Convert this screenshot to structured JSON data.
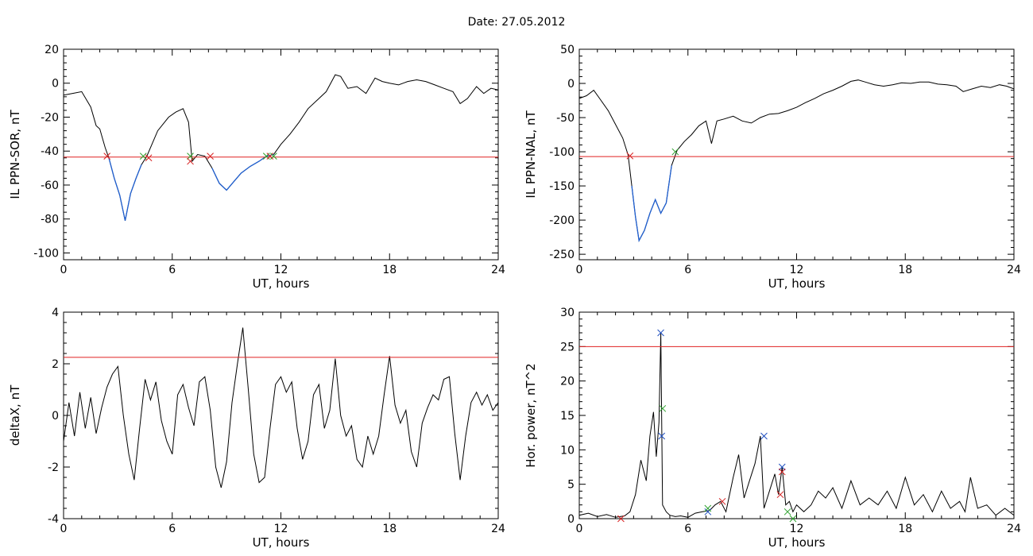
{
  "figure_title": "Date:  27.05.2012",
  "colors": {
    "line": "#000000",
    "threshold": "#e02020",
    "highlight": "#1f5fd0",
    "marker_green": "#2ca02c",
    "marker_red": "#d62020",
    "marker_blue": "#2050c0"
  },
  "chart_data": [
    {
      "type": "line",
      "id": "ppn-sor",
      "xlabel": "UT, hours",
      "ylabel": "IL PPN-SOR, nT",
      "xlim": [
        0,
        24
      ],
      "ylim": [
        -104,
        20
      ],
      "xticks": [
        0,
        6,
        12,
        18,
        24
      ],
      "yticks": [
        20,
        0,
        -20,
        -40,
        -60,
        -80,
        -100
      ],
      "threshold": -43.5,
      "highlight_ranges": [
        [
          2.5,
          4.5
        ],
        [
          8.2,
          11.6
        ]
      ],
      "series": [
        {
          "x": [
            0.0,
            0.5,
            1.0,
            1.5,
            1.8,
            2.0,
            2.3,
            2.5,
            2.8,
            3.1,
            3.4,
            3.7,
            4.0,
            4.3,
            4.6,
            5.2,
            5.8,
            6.2,
            6.6,
            6.9,
            7.1,
            7.4,
            7.8,
            8.2,
            8.6,
            9.0,
            9.4,
            9.8,
            10.3,
            10.8,
            11.2,
            11.6,
            12.0,
            12.5,
            13.0,
            13.5,
            14.0,
            14.5,
            15.0,
            15.3,
            15.7,
            16.2,
            16.7,
            17.2,
            17.6,
            18.0,
            18.5,
            19.0,
            19.5,
            20.0,
            20.5,
            21.0,
            21.5,
            21.9,
            22.3,
            22.8,
            23.2,
            23.6,
            24.0
          ],
          "y": [
            -7,
            -6,
            -5,
            -14,
            -25,
            -27,
            -38,
            -44,
            -56,
            -66,
            -81,
            -65,
            -56,
            -48,
            -43,
            -28,
            -20,
            -17,
            -15,
            -23,
            -46,
            -42,
            -43,
            -50,
            -59,
            -63,
            -58,
            -53,
            -49,
            -46,
            -43,
            -42,
            -36,
            -30,
            -23,
            -15,
            -10,
            -5,
            5,
            4,
            -3,
            -2,
            -6,
            3,
            1,
            0,
            -1,
            1,
            2,
            1,
            -1,
            -3,
            -5,
            -12,
            -9,
            -2,
            -6,
            -3,
            -4
          ]
        }
      ],
      "markers": [
        {
          "x": 2.4,
          "y": -43,
          "color": "red"
        },
        {
          "x": 4.4,
          "y": -43,
          "color": "green"
        },
        {
          "x": 4.7,
          "y": -44,
          "color": "red"
        },
        {
          "x": 7.0,
          "y": -43,
          "color": "green"
        },
        {
          "x": 7.0,
          "y": -46,
          "color": "red"
        },
        {
          "x": 8.1,
          "y": -43,
          "color": "red"
        },
        {
          "x": 11.2,
          "y": -43,
          "color": "green"
        },
        {
          "x": 11.4,
          "y": -43,
          "color": "red"
        },
        {
          "x": 11.6,
          "y": -43,
          "color": "green"
        }
      ]
    },
    {
      "type": "line",
      "id": "ppn-nal",
      "xlabel": "UT, hours",
      "ylabel": "IL PPN-NAL, nT",
      "xlim": [
        0,
        24
      ],
      "ylim": [
        -258,
        50
      ],
      "xticks": [
        0,
        6,
        12,
        18,
        24
      ],
      "yticks": [
        50,
        0,
        -50,
        -100,
        -150,
        -200,
        -250
      ],
      "threshold": -107,
      "highlight_ranges": [
        [
          2.8,
          5.2
        ]
      ],
      "series": [
        {
          "x": [
            0.0,
            0.4,
            0.8,
            1.2,
            1.6,
            2.0,
            2.4,
            2.7,
            2.9,
            3.1,
            3.3,
            3.6,
            3.9,
            4.2,
            4.5,
            4.8,
            5.1,
            5.4,
            5.8,
            6.2,
            6.6,
            7.0,
            7.3,
            7.6,
            8.0,
            8.5,
            9.0,
            9.5,
            10.0,
            10.5,
            11.0,
            11.5,
            12.0,
            12.5,
            13.0,
            13.5,
            14.0,
            14.5,
            15.0,
            15.4,
            15.8,
            16.3,
            16.8,
            17.3,
            17.8,
            18.3,
            18.8,
            19.3,
            19.8,
            20.3,
            20.8,
            21.2,
            21.7,
            22.2,
            22.7,
            23.2,
            23.6,
            24.0
          ],
          "y": [
            -22,
            -18,
            -10,
            -25,
            -40,
            -60,
            -80,
            -105,
            -150,
            -195,
            -230,
            -215,
            -190,
            -170,
            -190,
            -175,
            -120,
            -98,
            -85,
            -75,
            -62,
            -55,
            -88,
            -55,
            -52,
            -48,
            -55,
            -58,
            -50,
            -45,
            -44,
            -40,
            -35,
            -28,
            -22,
            -15,
            -10,
            -4,
            3,
            5,
            2,
            -2,
            -4,
            -2,
            1,
            0,
            2,
            2,
            -1,
            -2,
            -4,
            -12,
            -8,
            -4,
            -6,
            -2,
            -4,
            -8
          ]
        }
      ],
      "markers": [
        {
          "x": 2.8,
          "y": -106,
          "color": "red"
        },
        {
          "x": 5.3,
          "y": -100,
          "color": "green"
        }
      ]
    },
    {
      "type": "line",
      "id": "deltax",
      "xlabel": "UT, hours",
      "ylabel": "deltaX, nT",
      "xlim": [
        0,
        24
      ],
      "ylim": [
        -4,
        4
      ],
      "xticks": [
        0,
        6,
        12,
        18,
        24
      ],
      "yticks": [
        4,
        2,
        0,
        -2,
        -4
      ],
      "threshold": 2.25,
      "series": [
        {
          "x": [
            0.0,
            0.3,
            0.6,
            0.9,
            1.2,
            1.5,
            1.8,
            2.1,
            2.4,
            2.7,
            3.0,
            3.3,
            3.6,
            3.9,
            4.2,
            4.5,
            4.8,
            5.1,
            5.4,
            5.7,
            6.0,
            6.3,
            6.6,
            6.9,
            7.2,
            7.5,
            7.8,
            8.1,
            8.4,
            8.7,
            9.0,
            9.3,
            9.6,
            9.9,
            10.2,
            10.5,
            10.8,
            11.1,
            11.4,
            11.7,
            12.0,
            12.3,
            12.6,
            12.9,
            13.2,
            13.5,
            13.8,
            14.1,
            14.4,
            14.7,
            15.0,
            15.3,
            15.6,
            15.9,
            16.2,
            16.5,
            16.8,
            17.1,
            17.4,
            17.7,
            18.0,
            18.3,
            18.6,
            18.9,
            19.2,
            19.5,
            19.8,
            20.1,
            20.4,
            20.7,
            21.0,
            21.3,
            21.6,
            21.9,
            22.2,
            22.5,
            22.8,
            23.1,
            23.4,
            23.7,
            24.0
          ],
          "y": [
            -1.0,
            0.5,
            -0.8,
            0.9,
            -0.5,
            0.7,
            -0.7,
            0.3,
            1.1,
            1.6,
            1.9,
            0.0,
            -1.5,
            -2.5,
            -0.5,
            1.4,
            0.6,
            1.3,
            -0.2,
            -1.0,
            -1.5,
            0.8,
            1.2,
            0.3,
            -0.4,
            1.3,
            1.5,
            0.2,
            -2.0,
            -2.8,
            -1.8,
            0.5,
            2.0,
            3.4,
            1.0,
            -1.5,
            -2.6,
            -2.4,
            -0.5,
            1.2,
            1.5,
            0.9,
            1.3,
            -0.5,
            -1.7,
            -1.0,
            0.8,
            1.2,
            -0.5,
            0.2,
            2.2,
            0.0,
            -0.8,
            -0.4,
            -1.7,
            -2.0,
            -0.8,
            -1.5,
            -0.8,
            0.8,
            2.3,
            0.4,
            -0.3,
            0.2,
            -1.4,
            -2.0,
            -0.3,
            0.3,
            0.8,
            0.6,
            1.4,
            1.5,
            -0.7,
            -2.5,
            -0.8,
            0.5,
            0.9,
            0.4,
            0.8,
            0.2,
            0.5
          ]
        }
      ],
      "markers": []
    },
    {
      "type": "line",
      "id": "hor-power",
      "xlabel": "UT, hours",
      "ylabel": "Hor. power, nT^2",
      "xlim": [
        0,
        24
      ],
      "ylim": [
        0,
        30
      ],
      "xticks": [
        0,
        6,
        12,
        18,
        24
      ],
      "yticks": [
        30,
        25,
        20,
        15,
        10,
        5,
        0
      ],
      "threshold": 25,
      "series": [
        {
          "x": [
            0.0,
            0.5,
            1.0,
            1.5,
            2.0,
            2.5,
            2.8,
            3.1,
            3.4,
            3.7,
            3.9,
            4.1,
            4.25,
            4.4,
            4.5,
            4.6,
            4.8,
            5.0,
            5.3,
            5.6,
            6.0,
            6.4,
            6.8,
            7.2,
            7.5,
            7.8,
            8.1,
            8.5,
            8.8,
            9.1,
            9.4,
            9.7,
            10.0,
            10.2,
            10.5,
            10.8,
            11.0,
            11.2,
            11.4,
            11.6,
            11.8,
            12.0,
            12.4,
            12.8,
            13.2,
            13.6,
            14.0,
            14.5,
            15.0,
            15.5,
            16.0,
            16.5,
            17.0,
            17.5,
            18.0,
            18.5,
            19.0,
            19.5,
            20.0,
            20.5,
            21.0,
            21.3,
            21.6,
            22.0,
            22.5,
            23.0,
            23.5,
            24.0
          ],
          "y": [
            0.5,
            0.8,
            0.3,
            0.6,
            0.2,
            0.4,
            1.0,
            3.5,
            8.5,
            5.5,
            12.0,
            15.5,
            9.0,
            14.0,
            27.0,
            2.0,
            1.0,
            0.5,
            0.3,
            0.4,
            0.2,
            0.8,
            1.0,
            1.2,
            2.0,
            2.5,
            1.0,
            6.0,
            9.3,
            3.0,
            5.5,
            8.0,
            12.0,
            1.5,
            4.0,
            6.5,
            3.5,
            7.5,
            2.0,
            2.5,
            1.0,
            2.0,
            1.0,
            2.0,
            4.0,
            3.0,
            4.5,
            1.5,
            5.5,
            2.0,
            3.0,
            2.0,
            4.0,
            1.5,
            6.0,
            2.0,
            3.5,
            1.0,
            4.0,
            1.5,
            2.5,
            1.0,
            6.0,
            1.5,
            2.0,
            0.5,
            1.5,
            0.5
          ]
        }
      ],
      "markers": [
        {
          "x": 2.3,
          "y": 0.0,
          "color": "red"
        },
        {
          "x": 4.5,
          "y": 27.0,
          "color": "blue"
        },
        {
          "x": 4.6,
          "y": 16.0,
          "color": "green"
        },
        {
          "x": 4.55,
          "y": 12.0,
          "color": "blue"
        },
        {
          "x": 7.1,
          "y": 1.0,
          "color": "blue"
        },
        {
          "x": 7.1,
          "y": 1.5,
          "color": "green"
        },
        {
          "x": 7.9,
          "y": 2.5,
          "color": "red"
        },
        {
          "x": 10.2,
          "y": 12.0,
          "color": "blue"
        },
        {
          "x": 11.2,
          "y": 7.5,
          "color": "blue"
        },
        {
          "x": 11.2,
          "y": 6.8,
          "color": "red"
        },
        {
          "x": 11.1,
          "y": 3.5,
          "color": "red"
        },
        {
          "x": 11.5,
          "y": 1.0,
          "color": "green"
        },
        {
          "x": 11.8,
          "y": 0.0,
          "color": "green"
        }
      ]
    }
  ]
}
